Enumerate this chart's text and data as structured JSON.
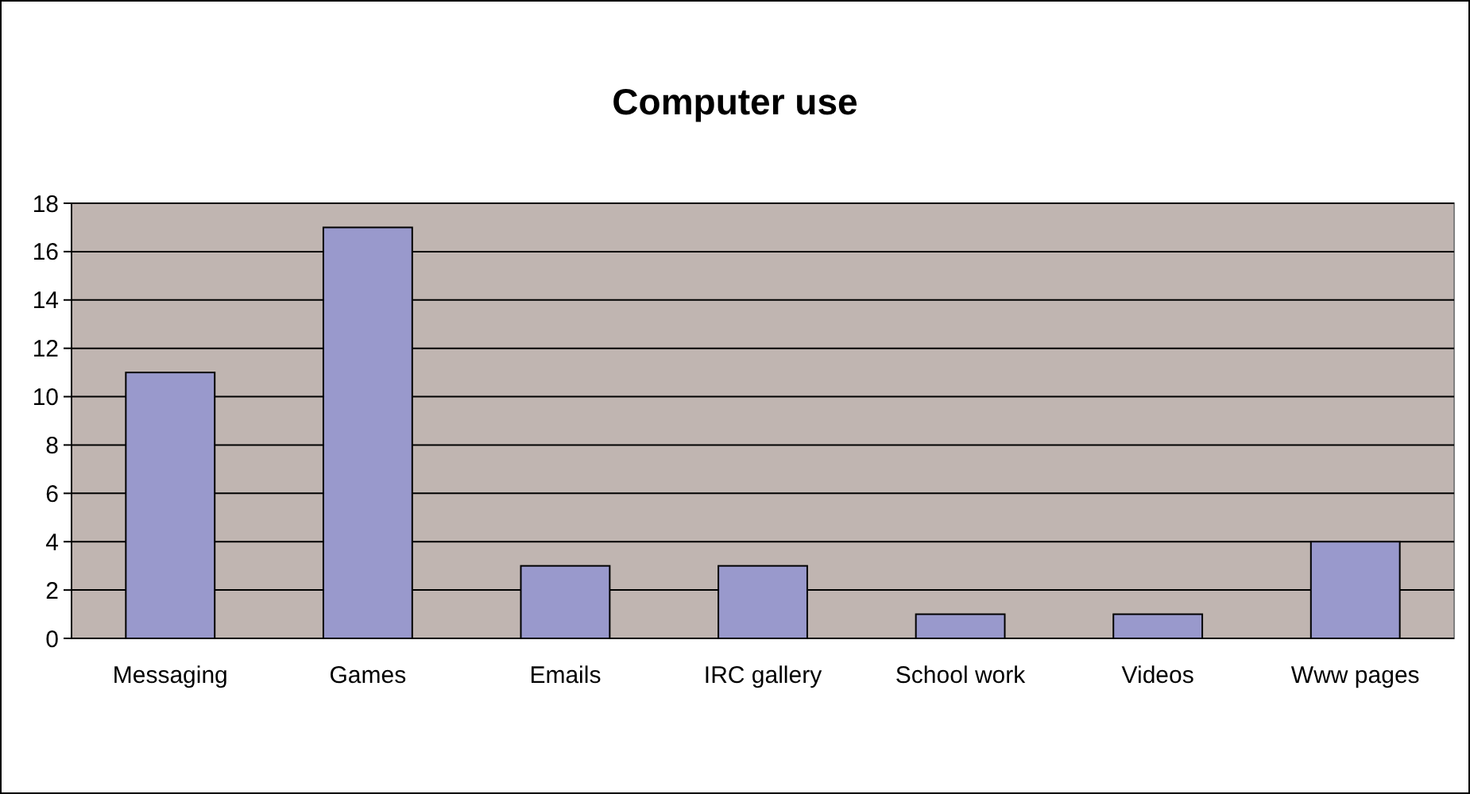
{
  "chart_data": {
    "type": "bar",
    "title": "Computer use",
    "categories": [
      "Messaging",
      "Games",
      "Emails",
      "IRC gallery",
      "School work",
      "Videos",
      "Www pages"
    ],
    "values": [
      11,
      17,
      3,
      3,
      1,
      1,
      4
    ],
    "color": "#9999cc",
    "ylim": [
      0,
      18
    ],
    "yticks": [
      0,
      2,
      4,
      6,
      8,
      10,
      12,
      14,
      16,
      18
    ],
    "grid": "y"
  }
}
